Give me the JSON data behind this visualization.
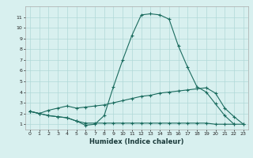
{
  "xlabel": "Humidex (Indice chaleur)",
  "x": [
    0,
    1,
    2,
    3,
    4,
    5,
    6,
    7,
    8,
    9,
    10,
    11,
    12,
    13,
    14,
    15,
    16,
    17,
    18,
    19,
    20,
    21,
    22,
    23
  ],
  "line1": [
    2.2,
    2.0,
    1.8,
    1.7,
    1.6,
    1.3,
    0.9,
    1.0,
    1.8,
    4.5,
    7.0,
    9.3,
    11.2,
    11.3,
    11.2,
    10.8,
    8.3,
    6.3,
    4.5,
    4.0,
    2.9,
    1.8,
    1.0,
    null
  ],
  "line2": [
    2.2,
    2.0,
    2.3,
    2.5,
    2.7,
    2.5,
    2.6,
    2.7,
    2.8,
    3.0,
    3.2,
    3.4,
    3.6,
    3.7,
    3.9,
    4.0,
    4.1,
    4.2,
    4.3,
    4.4,
    3.9,
    2.5,
    1.7,
    1.0
  ],
  "line3": [
    2.2,
    2.0,
    1.8,
    1.7,
    1.6,
    1.3,
    1.1,
    1.1,
    1.1,
    1.1,
    1.1,
    1.1,
    1.1,
    1.1,
    1.1,
    1.1,
    1.1,
    1.1,
    1.1,
    1.1,
    1.0,
    1.0,
    1.0,
    1.0
  ],
  "line_color": "#1a6b5e",
  "bg_color": "#d8f0ef",
  "grid_color": "#b0d8d8",
  "xlim": [
    -0.5,
    23.5
  ],
  "ylim": [
    0.5,
    12
  ],
  "yticks": [
    1,
    2,
    3,
    4,
    5,
    6,
    7,
    8,
    9,
    10,
    11
  ],
  "xticks": [
    0,
    1,
    2,
    3,
    4,
    5,
    6,
    7,
    8,
    9,
    10,
    11,
    12,
    13,
    14,
    15,
    16,
    17,
    18,
    19,
    20,
    21,
    22,
    23
  ]
}
